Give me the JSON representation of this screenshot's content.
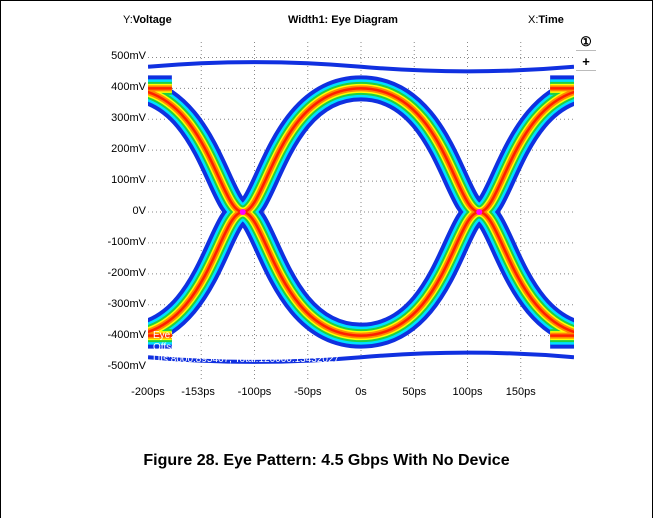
{
  "header": {
    "y_prefix": "Y:",
    "y_label": "Voltage",
    "title": "Width1: Eye Diagram",
    "x_prefix": "X:",
    "x_label": "Time"
  },
  "side_buttons": {
    "marker": "①",
    "add": "+"
  },
  "info": {
    "eye": "Eye: All Bits",
    "offset": "Offset: -0.00018815",
    "uis": "UIs:8000:895467, Total:120000:13432027"
  },
  "caption": "Figure 28. Eye Pattern: 4.5 Gbps With No Device",
  "colors": {
    "blue": "#1030e0",
    "cyan": "#00e0ff",
    "green": "#20d040",
    "yellow": "#ffff00",
    "orange": "#ff8800",
    "red": "#ff2000",
    "grid": "#888888"
  },
  "chart_data": {
    "type": "heatmap",
    "title": "Width1: Eye Diagram",
    "xlabel": "Time",
    "ylabel": "Voltage",
    "y_ticks": [
      "500mV",
      "400mV",
      "300mV",
      "200mV",
      "100mV",
      "0V",
      "-100mV",
      "-200mV",
      "-300mV",
      "-400mV",
      "-500mV"
    ],
    "x_ticks": [
      "-200ps",
      "-153ps",
      "-100ps",
      "-50ps",
      "0s",
      "50ps",
      "100ps",
      "150ps"
    ],
    "xlim_ps": [
      -200,
      200
    ],
    "ylim_mV": [
      -550,
      550
    ],
    "crossings_ps": [
      -111,
      111
    ],
    "levels_mV": {
      "high": 400,
      "low": -400
    },
    "grid": true
  }
}
